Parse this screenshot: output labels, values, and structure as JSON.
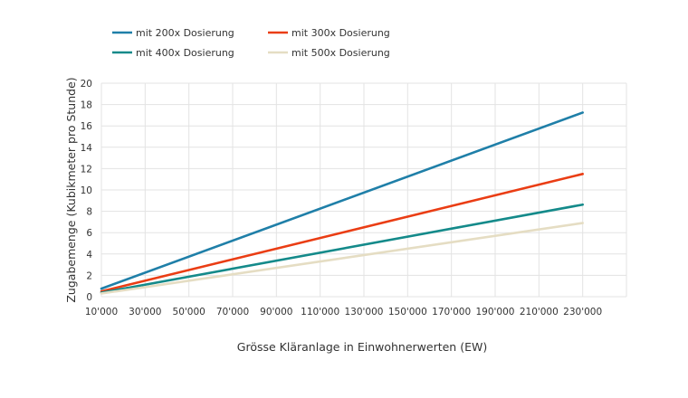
{
  "chart_data": {
    "type": "line",
    "title": "",
    "xlabel": "Grösse Kläranlage in Einwohnerwerten (EW)",
    "ylabel": "Zugabemenge (Kubikmeter pro Stunde)",
    "x": [
      10000,
      230000
    ],
    "xticks": [
      "10'000",
      "30'000",
      "50'000",
      "70'000",
      "90'000",
      "110'000",
      "130'000",
      "150'000",
      "170'000",
      "190'000",
      "210'000",
      "230'000"
    ],
    "xlim": [
      10000,
      250000
    ],
    "ylim": [
      0,
      20
    ],
    "yticks": [
      0,
      2,
      4,
      6,
      8,
      10,
      12,
      14,
      16,
      18,
      20
    ],
    "grid": true,
    "legend": "top-left",
    "series": [
      {
        "name": "mit 200x Dosierung",
        "color": "#1f7fa8",
        "values": [
          0.75,
          17.25
        ]
      },
      {
        "name": "mit 300x Dosierung",
        "color": "#ea3d14",
        "values": [
          0.5,
          11.5
        ]
      },
      {
        "name": "mit 400x Dosierung",
        "color": "#148a8a",
        "values": [
          0.375,
          8.625
        ]
      },
      {
        "name": "mit 500x Dosierung",
        "color": "#e5ddc3",
        "values": [
          0.3,
          6.9
        ]
      }
    ]
  }
}
